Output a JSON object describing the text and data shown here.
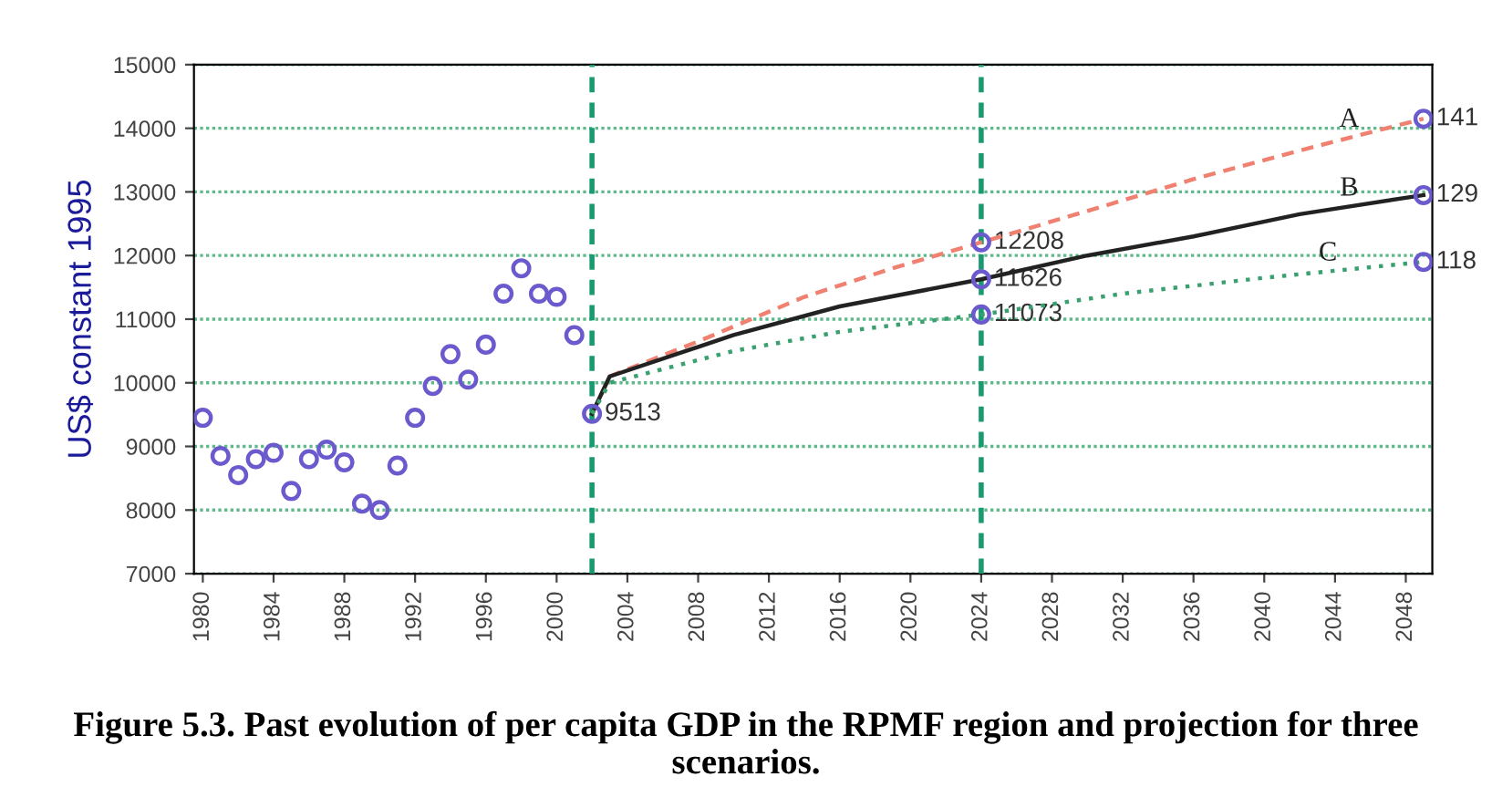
{
  "chart_data": {
    "type": "line",
    "title": "Figure 5.3. Past evolution of per capita GDP in the RPMF region and projection for three scenarios.",
    "ylabel": "US$ constant 1995",
    "series": [
      {
        "type": "scatter",
        "color": "#6a5acd",
        "marker": "circle",
        "x": [
          1980,
          1981,
          1982,
          1983,
          1984,
          1985,
          1986,
          1987,
          1988,
          1989,
          1990,
          1991,
          1992,
          1993,
          1994,
          1995,
          1996,
          1997,
          1998,
          1999,
          2000,
          2001,
          2002
        ],
        "values": [
          9450,
          8850,
          8550,
          8800,
          8900,
          8300,
          8800,
          8950,
          8750,
          8100,
          8000,
          8700,
          9450,
          9950,
          10450,
          10050,
          10600,
          11400,
          11800,
          11400,
          11350,
          10750,
          9513
        ]
      },
      {
        "name": "A",
        "color": "#f08070",
        "line_style": "dashed",
        "x": [
          2002,
          2003,
          2008,
          2014,
          2019,
          2024,
          2030,
          2036,
          2042,
          2049
        ],
        "values": [
          9513,
          10100,
          10650,
          11350,
          11800,
          12208,
          12700,
          13200,
          13650,
          14150
        ]
      },
      {
        "name": "B",
        "color": "#222222",
        "line_style": "solid",
        "x": [
          2002,
          2003,
          2010,
          2016,
          2024,
          2030,
          2036,
          2042,
          2049
        ],
        "values": [
          9513,
          10100,
          10750,
          11200,
          11626,
          12000,
          12300,
          12650,
          12950
        ]
      },
      {
        "name": "C",
        "color": "#3aa070",
        "line_style": "dotted",
        "x": [
          2002,
          2003,
          2010,
          2016,
          2024,
          2032,
          2040,
          2049
        ],
        "values": [
          9513,
          10000,
          10500,
          10800,
          11073,
          11400,
          11650,
          11900
        ]
      },
      {
        "type": "scatter",
        "color": "#6a5acd",
        "marker": "circle",
        "x": [
          2024,
          2024,
          2024,
          2049,
          2049,
          2049
        ],
        "values": [
          12208,
          11626,
          11073,
          14150,
          12950,
          11900
        ]
      }
    ],
    "xlim": [
      1979.5,
      2049.5
    ],
    "ylim": [
      7000,
      15000
    ],
    "xticks": [
      1980,
      1984,
      1988,
      1992,
      1996,
      2000,
      2004,
      2008,
      2012,
      2016,
      2020,
      2024,
      2028,
      2032,
      2036,
      2040,
      2044,
      2048
    ],
    "yticks": [
      7000,
      8000,
      9000,
      10000,
      11000,
      12000,
      13000,
      14000,
      15000
    ],
    "grid": "y",
    "ref_lines": [
      {
        "axis": "x",
        "value": 2002,
        "color": "#1a9a70",
        "line_style": "dashed"
      },
      {
        "axis": "x",
        "value": 2024,
        "color": "#1a9a70",
        "line_style": "dashed"
      }
    ],
    "annotations": [
      {
        "text": "9513",
        "x": 2002,
        "y": 9513
      },
      {
        "text": "12208",
        "x": 2024,
        "y": 12208
      },
      {
        "text": "11626",
        "x": 2024,
        "y": 11626
      },
      {
        "text": "11073",
        "x": 2024,
        "y": 11073
      },
      {
        "text": "141",
        "x": 2049,
        "y": 14150
      },
      {
        "text": "129",
        "x": 2049,
        "y": 12950
      },
      {
        "text": "118",
        "x": 2049,
        "y": 11900
      }
    ]
  }
}
